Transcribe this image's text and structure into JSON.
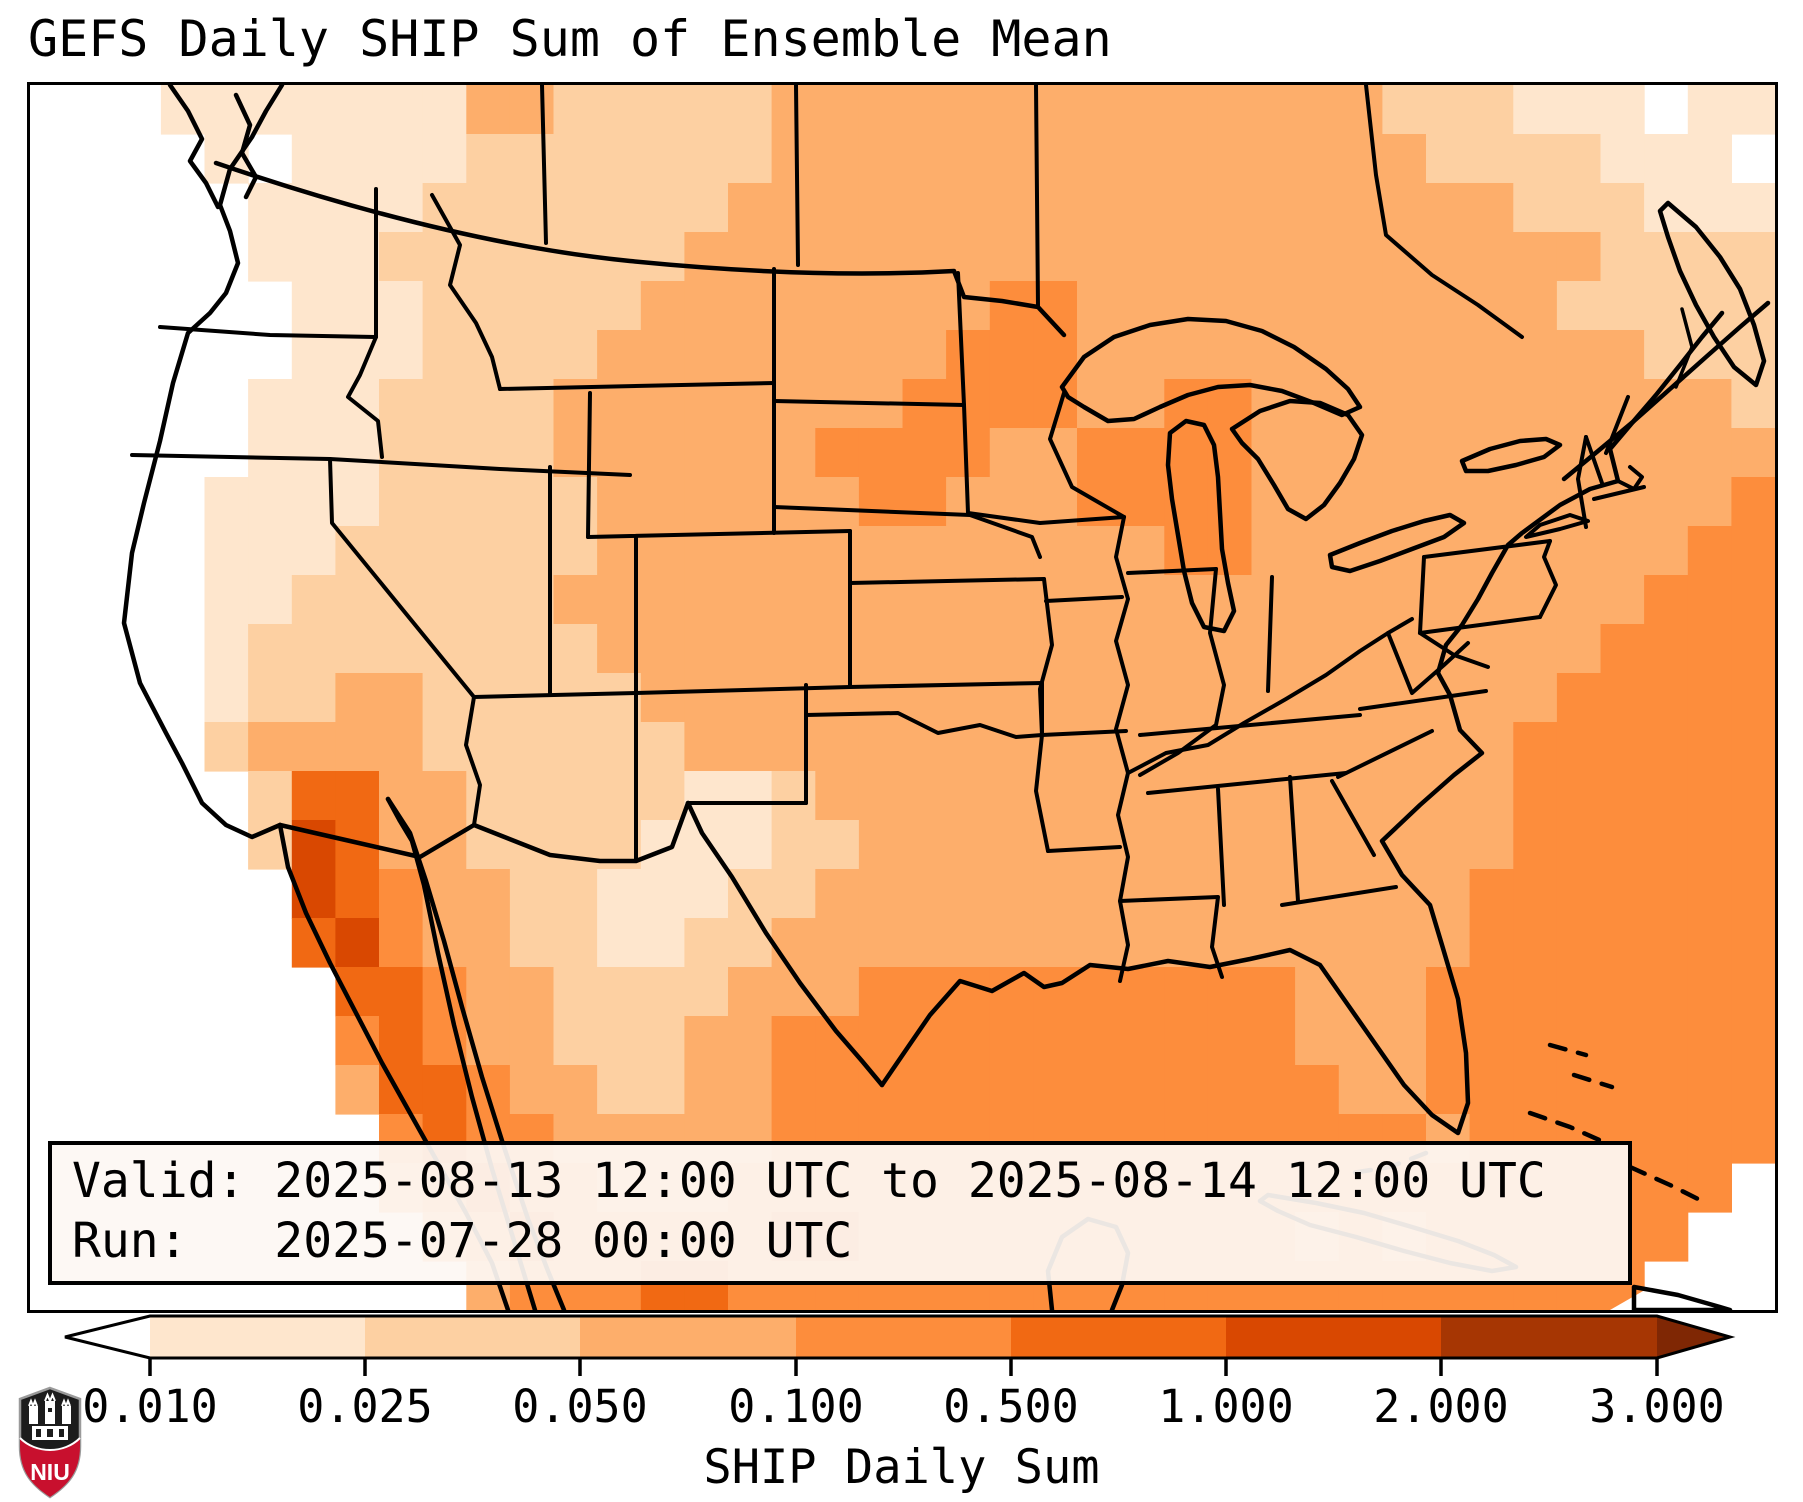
{
  "title": "GEFS Daily SHIP Sum of Ensemble Mean",
  "info_box": {
    "valid_line": "Valid: 2025-08-13 12:00 UTC to 2025-08-14 12:00 UTC",
    "run_line": "Run:   2025-07-28 00:00 UTC"
  },
  "colorbar": {
    "label": "SHIP Daily Sum",
    "tick_labels": [
      "0.010",
      "0.025",
      "0.050",
      "0.100",
      "0.500",
      "1.000",
      "2.000",
      "3.000"
    ],
    "boundaries": [
      0.01,
      0.025,
      0.05,
      0.1,
      0.5,
      1.0,
      2.0,
      3.0
    ],
    "segment_colors": [
      "#fee6cd",
      "#fdd0a2",
      "#fdae6b",
      "#fd8d3c",
      "#f16913",
      "#d94801",
      "#a63603"
    ],
    "under_color": "#ffffff",
    "over_color": "#7f2704",
    "outline_color": "#000000"
  },
  "logo": {
    "text": "NIU",
    "shield_color": "#1c1c1c",
    "band_color": "#c8102e",
    "castle_color": "#ffffff"
  },
  "map": {
    "border_color": "#000000",
    "palette": [
      "#ffffff",
      "#fee6cd",
      "#fdd0a2",
      "#fdae6b",
      "#fd8d3c",
      "#f16913",
      "#d94801",
      "#a63603",
      "#7f2704"
    ],
    "cols": 40,
    "rows": 25,
    "grid_rows": [
      "0001111111332222233333333333333222111011",
      "0000101111222222233333333333333322221110",
      "0000011112222222333333333333333333222111",
      "0000011122222223333333333333333333332222",
      "0000001112222233333333443333333333322222",
      "0000001112222333333334443333333333333222",
      "0000011122223333333344443344333333333332",
      "0000011122223333334444334444333333333333",
      "0000111122222333333443334444333333333334",
      "0000111222222333333333333344333333333344",
      "0000112222223333333333333333333333333444",
      "0000122222222333333333333333333333334444",
      "0000122332222233333333333333333333344444",
      "0000233332222223333333333333333333444444",
      "0000025533222221123333333333333333444444",
      "0000026533222211122333333333333333444444",
      "0000006543322111223333333333333334444444",
      "0000005643322112233333333333333334444444",
      "0000000554332222333444444444433344444444",
      "0000000454332223344444444444433344444444",
      "0000000355433223344444444444443344444444",
      "0000000045443333344444444444444434444444",
      "0000000034544333444444444444444444444440",
      "0000000003454444455444444444434344444400",
      "0000000000344455444444444444444444444000"
    ]
  }
}
